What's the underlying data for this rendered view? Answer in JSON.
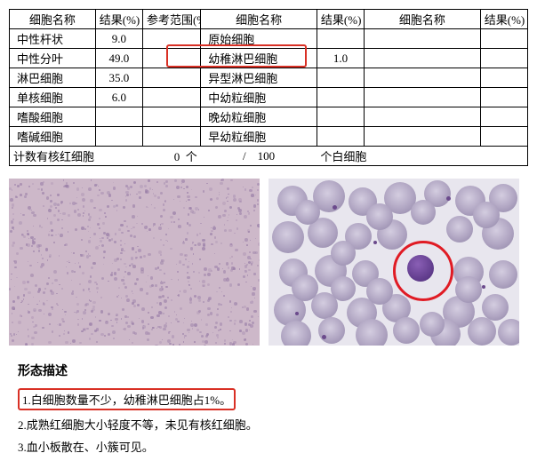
{
  "table": {
    "headers": {
      "name": "细胞名称",
      "result": "结果(%)",
      "ref": "参考范围(%)"
    },
    "col1": [
      {
        "name": "中性杆状",
        "result": "9.0",
        "ref": ""
      },
      {
        "name": "中性分叶",
        "result": "49.0",
        "ref": ""
      },
      {
        "name": "淋巴细胞",
        "result": "35.0",
        "ref": ""
      },
      {
        "name": "单核细胞",
        "result": "6.0",
        "ref": ""
      },
      {
        "name": "嗜酸细胞",
        "result": "",
        "ref": ""
      },
      {
        "name": "嗜碱细胞",
        "result": "",
        "ref": ""
      }
    ],
    "col2": [
      {
        "name": "原始细胞",
        "result": ""
      },
      {
        "name": "幼稚淋巴细胞",
        "result": "1.0",
        "highlight": true
      },
      {
        "name": "异型淋巴细胞",
        "result": ""
      },
      {
        "name": "中幼粒细胞",
        "result": ""
      },
      {
        "name": "晚幼粒细胞",
        "result": ""
      },
      {
        "name": "早幼粒细胞",
        "result": ""
      }
    ],
    "col3": [
      {
        "name": "",
        "result": ""
      },
      {
        "name": "",
        "result": ""
      },
      {
        "name": "",
        "result": ""
      },
      {
        "name": "",
        "result": ""
      },
      {
        "name": "",
        "result": ""
      },
      {
        "name": "",
        "result": ""
      }
    ],
    "footer": {
      "label1": "计数有核红细胞",
      "val1": "0",
      "unit1": "个",
      "sep": "/",
      "val2": "100",
      "label2": "个白细胞"
    }
  },
  "desc": {
    "title": "形态描述",
    "lines": [
      {
        "text": "1.白细胞数量不少，幼稚淋巴细胞占1%。",
        "highlight": true
      },
      {
        "text": "2.成熟红细胞大小轻度不等，未见有核红细胞。",
        "highlight": false
      },
      {
        "text": "3.血小板散在、小簇可见。",
        "highlight": false
      }
    ]
  },
  "colors": {
    "highlight": "#d93025",
    "border": "#000000",
    "bg": "#ffffff"
  }
}
